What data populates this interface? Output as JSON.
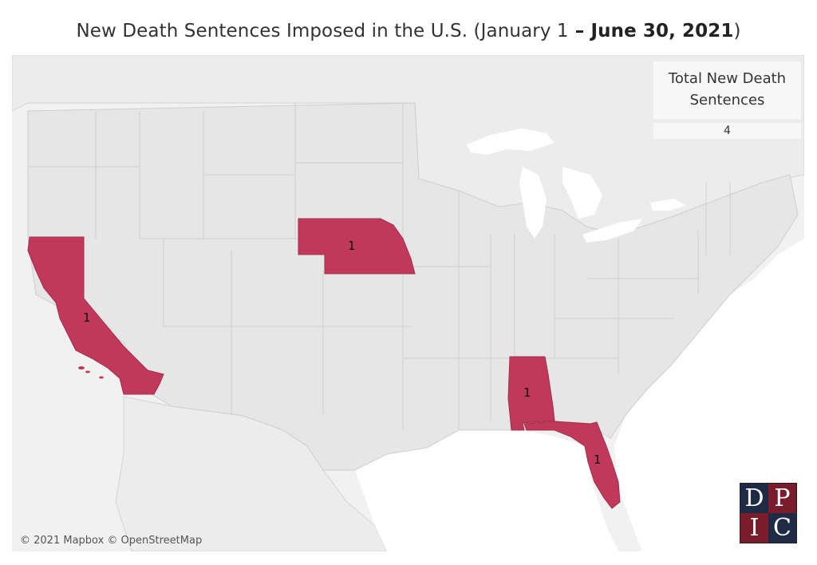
{
  "title": {
    "main": "New Death Sentences Imposed in the U.S. (January 1",
    "bold_part": " – June 30, 2021",
    "close": ")"
  },
  "legend": {
    "label": "Total New Death Sentences",
    "value": "4"
  },
  "states": [
    {
      "name": "California",
      "value": "1"
    },
    {
      "name": "Nebraska",
      "value": "1"
    },
    {
      "name": "Alabama",
      "value": "1"
    },
    {
      "name": "Florida",
      "value": "1"
    }
  ],
  "colors": {
    "highlight": "#c0395a",
    "base_land": "#e6e6e6",
    "water": "#ffffff",
    "border": "#bbbbbb"
  },
  "attribution": "© 2021 Mapbox © OpenStreetMap",
  "logo": {
    "letters": [
      "D",
      "P",
      "I",
      "C"
    ]
  }
}
